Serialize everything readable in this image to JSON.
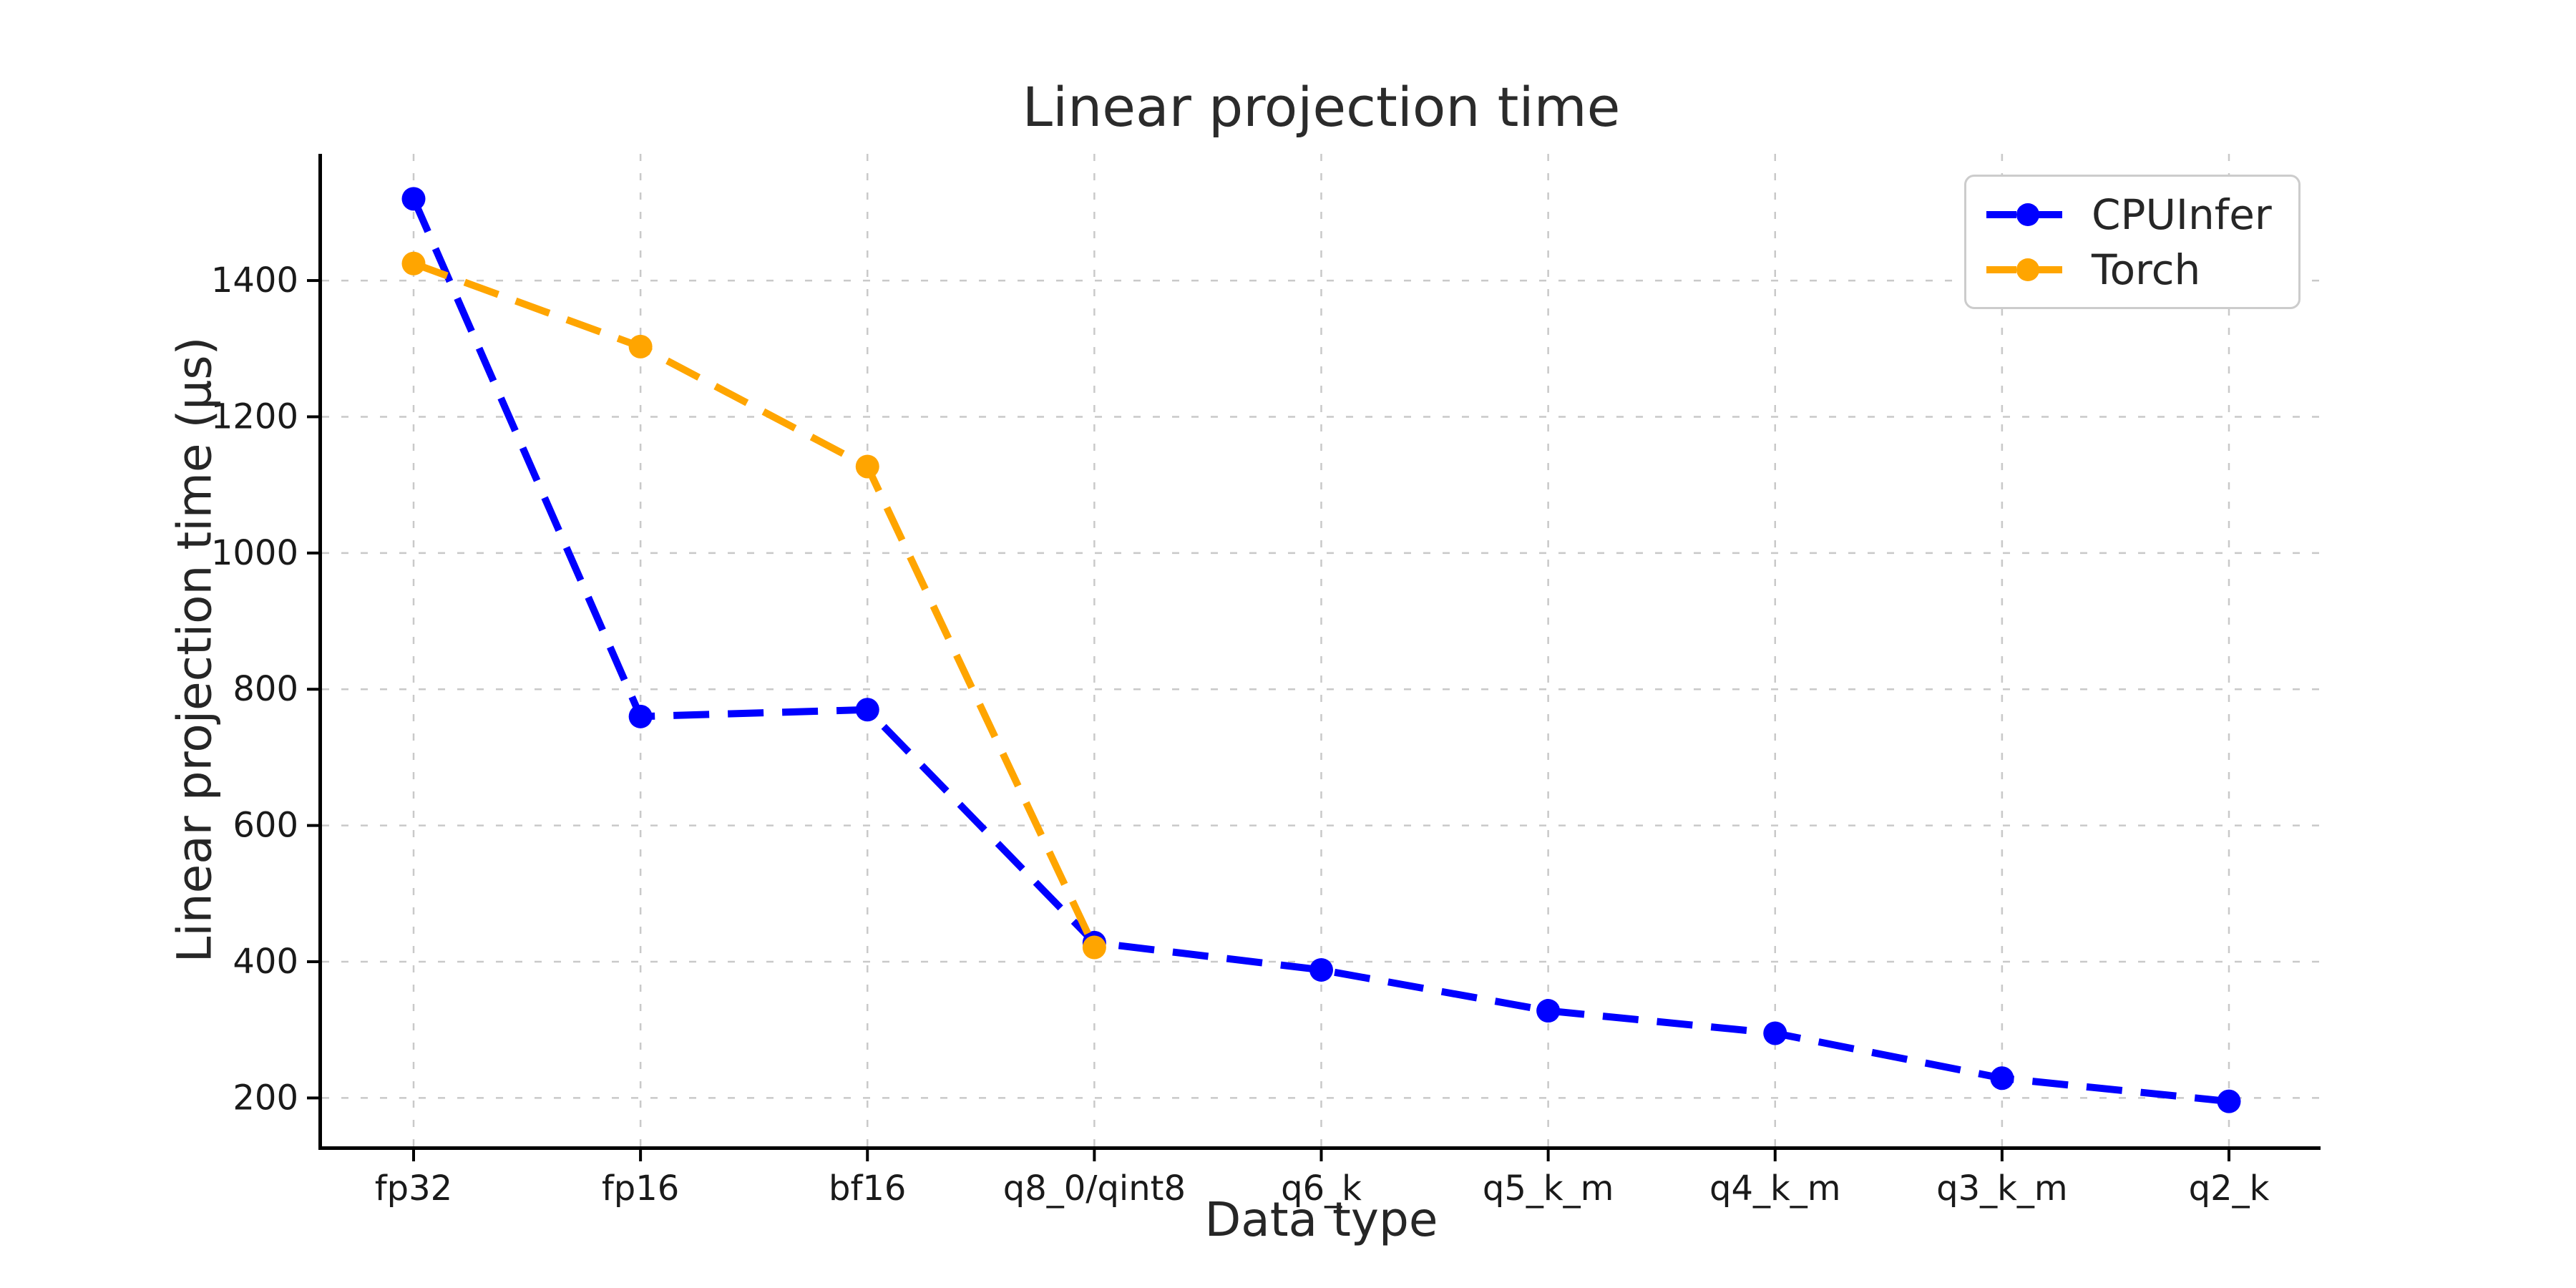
{
  "chart_data": {
    "type": "line",
    "title": "Linear projection time",
    "xlabel": "Data type",
    "ylabel": "Linear projection time (µs)",
    "categories": [
      "fp32",
      "fp16",
      "bf16",
      "q8_0/qint8",
      "q6_k",
      "q5_k_m",
      "q4_k_m",
      "q3_k_m",
      "q2_k"
    ],
    "series": [
      {
        "name": "CPUInfer",
        "color": "#0000ff",
        "values": [
          1520,
          760,
          770,
          428,
          388,
          328,
          295,
          229,
          195
        ]
      },
      {
        "name": "Torch",
        "color": "#ffa500",
        "values": [
          1425,
          1303,
          1127,
          421
        ]
      }
    ],
    "yticks": [
      200,
      400,
      600,
      800,
      1000,
      1200,
      1400
    ],
    "ylim": [
      129,
      1586
    ],
    "grid": true,
    "grid_color": "#c9c9c9",
    "line_style": "dashed",
    "marker": "circle",
    "legend_position": "upper right",
    "axis_color": "#000000",
    "tick_label_color": "#1a1a1a"
  }
}
